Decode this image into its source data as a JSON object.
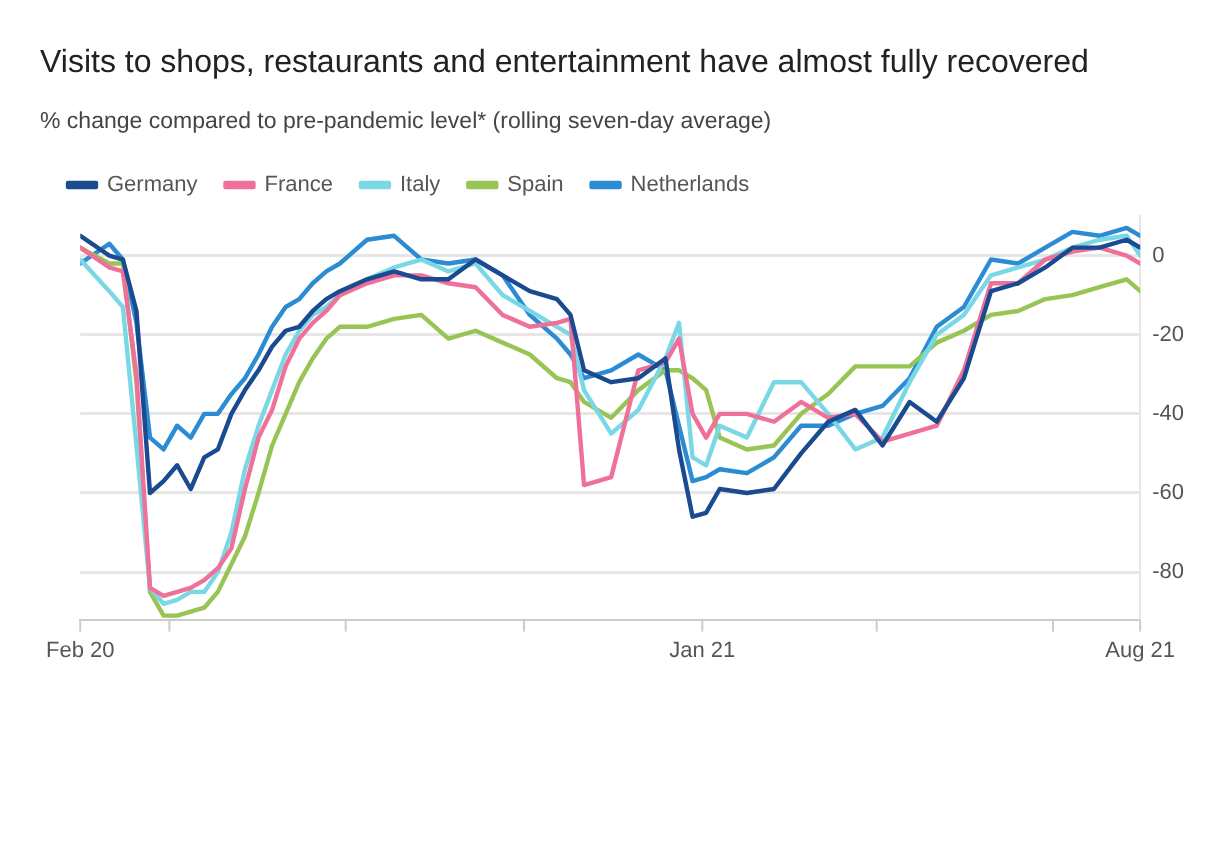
{
  "chart_data": {
    "type": "line",
    "title": "Visits to shops, restaurants and entertainment have almost fully recovered",
    "subtitle": "% change compared to pre-pandemic level* (rolling seven-day average)",
    "x": [
      "2020-02-15",
      "2020-03-01",
      "2020-03-08",
      "2020-03-15",
      "2020-03-22",
      "2020-03-29",
      "2020-04-05",
      "2020-04-12",
      "2020-04-19",
      "2020-04-26",
      "2020-05-03",
      "2020-05-10",
      "2020-05-17",
      "2020-05-24",
      "2020-05-31",
      "2020-06-07",
      "2020-06-14",
      "2020-06-21",
      "2020-06-28",
      "2020-07-12",
      "2020-07-26",
      "2020-08-09",
      "2020-08-23",
      "2020-09-06",
      "2020-09-20",
      "2020-10-04",
      "2020-10-18",
      "2020-10-25",
      "2020-11-01",
      "2020-11-15",
      "2020-11-29",
      "2020-12-13",
      "2020-12-20",
      "2020-12-27",
      "2021-01-03",
      "2021-01-10",
      "2021-01-24",
      "2021-02-07",
      "2021-02-21",
      "2021-03-07",
      "2021-03-21",
      "2021-04-04",
      "2021-04-18",
      "2021-05-02",
      "2021-05-16",
      "2021-05-30",
      "2021-06-13",
      "2021-06-27",
      "2021-07-11",
      "2021-07-25",
      "2021-08-08",
      "2021-08-15"
    ],
    "series": [
      {
        "name": "Germany",
        "color": "#1a4a8f",
        "values": [
          5,
          0,
          -1,
          -14,
          -60,
          -57,
          -53,
          -59,
          -51,
          -49,
          -40,
          -34,
          -29,
          -23,
          -19,
          -18,
          -14,
          -11,
          -9,
          -6,
          -4,
          -6,
          -6,
          -1,
          -5,
          -9,
          -11,
          -15,
          -29,
          -32,
          -31,
          -26,
          -49,
          -66,
          -65,
          -59,
          -60,
          -59,
          -50,
          -42,
          -39,
          -48,
          -37,
          -42,
          -31,
          -9,
          -7,
          -3,
          2,
          2,
          4,
          2
        ]
      },
      {
        "name": "France",
        "color": "#ef7199",
        "values": [
          2,
          -3,
          -4,
          -30,
          -84,
          -86,
          -85,
          -84,
          -82,
          -79,
          -74,
          -59,
          -46,
          -39,
          -28,
          -21,
          -17,
          -14,
          -10,
          -7,
          -5,
          -5,
          -7,
          -8,
          -15,
          -18,
          -17,
          -16,
          -58,
          -56,
          -29,
          -27,
          -21,
          -40,
          -46,
          -40,
          -40,
          -42,
          -37,
          -41,
          -40,
          -47,
          -45,
          -43,
          -29,
          -7,
          -7,
          -1,
          1,
          2,
          0,
          -2
        ]
      },
      {
        "name": "Italy",
        "color": "#7ad8e6",
        "values": [
          -1,
          -9,
          -13,
          -48,
          -84,
          -88,
          -87,
          -85,
          -85,
          -80,
          -70,
          -54,
          -43,
          -34,
          -25,
          -19,
          -15,
          -13,
          -10,
          -6,
          -3,
          -1,
          -4,
          -2,
          -10,
          -14,
          -18,
          -20,
          -34,
          -45,
          -39,
          -26,
          -17,
          -51,
          -53,
          -43,
          -46,
          -32,
          -32,
          -40,
          -49,
          -46,
          -32,
          -20,
          -15,
          -5,
          -3,
          -1,
          2,
          4,
          5,
          0
        ]
      },
      {
        "name": "Spain",
        "color": "#98c455",
        "values": [
          2,
          -2,
          -2,
          -32,
          -85,
          -91,
          -91,
          -90,
          -89,
          -85,
          -78,
          -71,
          -60,
          -48,
          -40,
          -32,
          -26,
          -21,
          -18,
          -18,
          -16,
          -15,
          -21,
          -19,
          -22,
          -25,
          -31,
          -32,
          -37,
          -41,
          -34,
          -29,
          -29,
          -31,
          -34,
          -46,
          -49,
          -48,
          -40,
          -35,
          -28,
          -28,
          -28,
          -22,
          -19,
          -15,
          -14,
          -11,
          -10,
          -8,
          -6,
          -9
        ]
      },
      {
        "name": "Netherlands",
        "color": "#2b8bd3",
        "values": [
          -2,
          3,
          -1,
          -17,
          -46,
          -49,
          -43,
          -46,
          -40,
          -40,
          -35,
          -31,
          -25,
          -18,
          -13,
          -11,
          -7,
          -4,
          -2,
          4,
          5,
          -1,
          -2,
          -1,
          -5,
          -15,
          -21,
          -25,
          -31,
          -29,
          -25,
          -29,
          -43,
          -57,
          -56,
          -54,
          -55,
          -51,
          -43,
          -43,
          -40,
          -38,
          -31,
          -18,
          -13,
          -1,
          -2,
          2,
          6,
          5,
          7,
          5
        ]
      }
    ],
    "xlim": [
      "2020-02-15",
      "2021-08-15"
    ],
    "xticks": [
      {
        "value": "2020-02-15",
        "label": "Feb 20"
      },
      {
        "value": "2020-04-01",
        "label": null
      },
      {
        "value": "2020-07-01",
        "label": null
      },
      {
        "value": "2020-10-01",
        "label": null
      },
      {
        "value": "2021-01-01",
        "label": "Jan 21"
      },
      {
        "value": "2021-04-01",
        "label": null
      },
      {
        "value": "2021-07-01",
        "label": null
      },
      {
        "value": "2021-08-15",
        "label": "Aug 21"
      }
    ],
    "ylim": [
      -92,
      10
    ],
    "yticks": [
      -80,
      -60,
      -40,
      -20,
      0
    ],
    "grid": "y",
    "legend": "top left",
    "marker": "none",
    "line_style": "solid"
  }
}
